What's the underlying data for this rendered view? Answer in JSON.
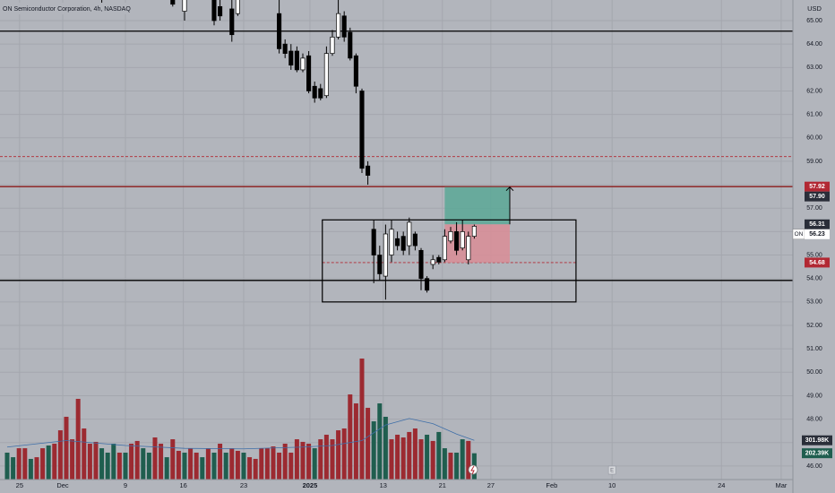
{
  "chart_data": {
    "type": "candlestick",
    "title": "ON Semiconductor Corporation, 4h, NASDAQ",
    "currency": "USD",
    "grid": true,
    "xlim": [
      -21.21,
      112.88
    ],
    "ylim": [
      44.85,
      65.88
    ],
    "vlim": [
      0,
      3690
    ],
    "xticks": [
      {
        "value": -17.9,
        "label": "25"
      },
      {
        "value": -10.6,
        "label": "Dec"
      },
      {
        "value": 0,
        "label": "9"
      },
      {
        "value": 9.8,
        "label": "16"
      },
      {
        "value": 20,
        "label": "23"
      },
      {
        "value": 31.2,
        "label": "2025",
        "bold": true
      },
      {
        "value": 43.6,
        "label": "13"
      },
      {
        "value": 53.6,
        "label": "21"
      },
      {
        "value": 61.8,
        "label": "27"
      },
      {
        "value": 72.1,
        "label": "Feb"
      },
      {
        "value": 82.3,
        "label": "10"
      },
      {
        "value": 100.8,
        "label": "24"
      },
      {
        "value": 110.9,
        "label": "Mar"
      }
    ],
    "yticks": [
      {
        "value": 46,
        "label": "46.00"
      },
      {
        "value": 47,
        "label": "47.00"
      },
      {
        "value": 48,
        "label": "48.00"
      },
      {
        "value": 49,
        "label": "49.00"
      },
      {
        "value": 50,
        "label": "50.00"
      },
      {
        "value": 51,
        "label": "51.00"
      },
      {
        "value": 52,
        "label": "52.00"
      },
      {
        "value": 53,
        "label": "53.00"
      },
      {
        "value": 54,
        "label": "54.00"
      },
      {
        "value": 55,
        "label": "55.00"
      },
      {
        "value": 56,
        "label": "56.00"
      },
      {
        "value": 57,
        "label": "57.00"
      },
      {
        "value": 58,
        "label": "58.00"
      },
      {
        "value": 59,
        "label": "59.00"
      },
      {
        "value": 60,
        "label": "60.00"
      },
      {
        "value": 61,
        "label": "61.00"
      },
      {
        "value": 62,
        "label": "62.00"
      },
      {
        "value": 63,
        "label": "63.00"
      },
      {
        "value": 64,
        "label": "64.00"
      },
      {
        "value": 65,
        "label": "65.00"
      }
    ],
    "candles": {
      "up_color": "#ffffff",
      "down_color": "#000000",
      "x": [
        -4,
        8,
        10,
        15,
        16,
        18,
        19,
        26,
        27,
        28,
        29,
        30,
        31,
        32,
        33,
        34,
        35,
        36,
        37,
        38,
        39,
        40,
        41,
        42,
        43,
        44,
        45,
        46,
        47,
        48,
        49,
        50,
        51,
        52,
        53,
        54,
        55,
        56,
        57,
        58,
        59
      ],
      "open": [
        66.0,
        66.2,
        65.4,
        66.0,
        65.6,
        65.5,
        65.3,
        65.3,
        64.0,
        63.7,
        63.7,
        62.9,
        63.5,
        62.2,
        62.1,
        61.8,
        63.6,
        64.3,
        65.2,
        64.5,
        63.5,
        62.0,
        58.8,
        56.1,
        55.0,
        54.1,
        55.0,
        55.7,
        55.8,
        55.4,
        55.9,
        55.2,
        54.0,
        54.6,
        54.9,
        54.8,
        55.6,
        56.0,
        55.3,
        54.8,
        55.8
      ],
      "high": [
        66.6,
        66.4,
        66.5,
        66.3,
        66.0,
        65.9,
        66.2,
        66.0,
        64.2,
        64.0,
        63.9,
        63.6,
        63.7,
        62.4,
        62.3,
        63.9,
        64.6,
        65.9,
        65.4,
        64.7,
        63.6,
        62.1,
        59.0,
        56.5,
        55.4,
        56.3,
        56.5,
        56.0,
        56.0,
        56.6,
        56.0,
        55.3,
        54.1,
        55.0,
        55.0,
        56.1,
        56.2,
        56.4,
        56.5,
        56.0,
        56.3
      ],
      "low": [
        65.57,
        65.6,
        65.0,
        64.8,
        65.0,
        64.1,
        65.2,
        63.6,
        63.4,
        62.9,
        62.8,
        62.8,
        61.9,
        61.5,
        61.6,
        61.7,
        63.5,
        64.2,
        64.1,
        63.3,
        61.9,
        58.5,
        58.0,
        53.8,
        53.9,
        53.1,
        54.7,
        55.2,
        55.0,
        55.0,
        55.2,
        53.5,
        53.4,
        54.4,
        54.6,
        54.7,
        55.5,
        55.0,
        55.2,
        54.6,
        55.7
      ],
      "close": [
        66.4,
        65.7,
        66.2,
        65.0,
        65.2,
        64.4,
        65.9,
        63.8,
        63.6,
        63.1,
        62.9,
        63.4,
        62.0,
        61.7,
        61.7,
        63.6,
        64.3,
        65.3,
        64.3,
        63.4,
        62.2,
        58.7,
        58.4,
        55.0,
        54.2,
        55.9,
        56.1,
        55.4,
        55.2,
        56.4,
        55.4,
        54.0,
        53.5,
        54.8,
        54.7,
        55.8,
        56.0,
        55.2,
        56.0,
        55.8,
        56.23
      ]
    },
    "volume": {
      "x": [
        -20,
        -19,
        -18,
        -17,
        -16,
        -15,
        -14,
        -13,
        -12,
        -11,
        -10,
        -9,
        -8,
        -7,
        -6,
        -5,
        -4,
        -3,
        -2,
        -1,
        0,
        1,
        2,
        3,
        4,
        5,
        6,
        7,
        8,
        9,
        10,
        11,
        12,
        13,
        14,
        15,
        16,
        17,
        18,
        19,
        20,
        21,
        22,
        23,
        24,
        25,
        26,
        27,
        28,
        29,
        30,
        31,
        32,
        33,
        34,
        35,
        36,
        37,
        38,
        39,
        40,
        41,
        42,
        43,
        44,
        45,
        46,
        47,
        48,
        49,
        50,
        51,
        52,
        53,
        54,
        55,
        56,
        57,
        58,
        59
      ],
      "values": [
        207,
        172,
        241,
        241,
        159,
        172,
        241,
        262,
        276,
        379,
        483,
        310,
        621,
        393,
        276,
        290,
        241,
        207,
        276,
        207,
        207,
        276,
        297,
        241,
        207,
        324,
        276,
        172,
        310,
        221,
        207,
        241,
        207,
        172,
        241,
        207,
        276,
        207,
        241,
        221,
        207,
        172,
        159,
        241,
        241,
        255,
        207,
        276,
        207,
        310,
        290,
        276,
        241,
        310,
        345,
        310,
        379,
        393,
        655,
        586,
        931,
        552,
        448,
        586,
        483,
        310,
        345,
        324,
        366,
        393,
        310,
        345,
        297,
        366,
        241,
        207,
        207,
        310,
        297,
        202.39
      ],
      "colors": [
        "#1f5e4f",
        "#1f5e4f",
        "#9c2a31",
        "#9c2a31",
        "#1f5e4f",
        "#9c2a31",
        "#9c2a31",
        "#1f5e4f",
        "#9c2a31",
        "#9c2a31",
        "#9c2a31",
        "#9c2a31",
        "#9c2a31",
        "#9c2a31",
        "#9c2a31",
        "#9c2a31",
        "#1f5e4f",
        "#1f5e4f",
        "#1f5e4f",
        "#9c2a31",
        "#1f5e4f",
        "#9c2a31",
        "#9c2a31",
        "#1f5e4f",
        "#1f5e4f",
        "#9c2a31",
        "#9c2a31",
        "#1f5e4f",
        "#9c2a31",
        "#9c2a31",
        "#1f5e4f",
        "#9c2a31",
        "#9c2a31",
        "#1f5e4f",
        "#9c2a31",
        "#1f5e4f",
        "#9c2a31",
        "#1f5e4f",
        "#9c2a31",
        "#9c2a31",
        "#1f5e4f",
        "#9c2a31",
        "#9c2a31",
        "#9c2a31",
        "#9c2a31",
        "#9c2a31",
        "#9c2a31",
        "#9c2a31",
        "#9c2a31",
        "#9c2a31",
        "#9c2a31",
        "#9c2a31",
        "#1f5e4f",
        "#9c2a31",
        "#9c2a31",
        "#9c2a31",
        "#9c2a31",
        "#9c2a31",
        "#9c2a31",
        "#9c2a31",
        "#9c2a31",
        "#9c2a31",
        "#1f5e4f",
        "#1f5e4f",
        "#1f5e4f",
        "#9c2a31",
        "#9c2a31",
        "#9c2a31",
        "#9c2a31",
        "#9c2a31",
        "#9c2a31",
        "#1f5e4f",
        "#9c2a31",
        "#1f5e4f",
        "#1f5e4f",
        "#9c2a31",
        "#1f5e4f",
        "#1f5e4f",
        "#9c2a31",
        "#1f5e4f"
      ],
      "value_labels": [
        null,
        null,
        null,
        null,
        null,
        null,
        null,
        null,
        null,
        null,
        null,
        null,
        null,
        null,
        null,
        null,
        null,
        null,
        null,
        null,
        null,
        null,
        null,
        null,
        null,
        null,
        null,
        null,
        null,
        null,
        null,
        null,
        null,
        null,
        null,
        null,
        null,
        null,
        null,
        null,
        null,
        null,
        null,
        null,
        null,
        null,
        null,
        null,
        null,
        null,
        null,
        null,
        null,
        null,
        null,
        null,
        null,
        null,
        null,
        null,
        null,
        null,
        null,
        null,
        null,
        null,
        null,
        null,
        null,
        null,
        null,
        null,
        null,
        null,
        null,
        null,
        null,
        null,
        null,
        "202.39K"
      ]
    },
    "volume_ma": {
      "color": "#3f6fa8",
      "label_bg": "#2a2e39",
      "x": [
        -20,
        -10,
        0,
        10,
        20,
        30,
        35,
        40,
        44,
        48,
        52,
        56,
        59
      ],
      "values": [
        250,
        300,
        262,
        240,
        236,
        250,
        262,
        300,
        420,
        470,
        430,
        350,
        301.98
      ],
      "value_labels": [
        null,
        null,
        null,
        null,
        null,
        null,
        null,
        null,
        null,
        null,
        null,
        null,
        "301.98K"
      ]
    },
    "levels": [
      {
        "value": 64.55,
        "color": "#000000",
        "dashed": false
      },
      {
        "value": 53.92,
        "color": "#000000",
        "dashed": false
      },
      {
        "value": 57.92,
        "color": "#8b1a1a",
        "dashed": false
      },
      {
        "value": 59.2,
        "color": "#b22833",
        "dashed": true
      },
      {
        "value": 54.68,
        "color": "#b22833",
        "dashed": true,
        "x": [
          33.3,
          76.2
        ]
      }
    ],
    "box": {
      "x": [
        33.3,
        76.2
      ],
      "y": [
        53.0,
        56.5
      ],
      "color": "#000000"
    },
    "position": {
      "x": [
        54,
        65
      ],
      "entry": 56.31,
      "target": 57.9,
      "stop": 54.68,
      "profit_color": "#5aa897",
      "loss_color": "#d98d96"
    },
    "badges": [
      {
        "value": 57.92,
        "bg": "#b22833",
        "fg": "#ffffff"
      },
      {
        "value": 57.9,
        "label": "57.90",
        "bg": "#2a2e39",
        "fg": "#ffffff"
      },
      {
        "value": 56.31,
        "bg": "#2a2e39",
        "fg": "#ffffff"
      },
      {
        "symbol": "ON",
        "value": 56.23,
        "bg": "#ffffff",
        "fg": "#131722"
      },
      {
        "value": 54.68,
        "bg": "#b22833",
        "fg": "#ffffff"
      }
    ],
    "earnings_marker": {
      "x": 82.3,
      "label": "E"
    }
  }
}
